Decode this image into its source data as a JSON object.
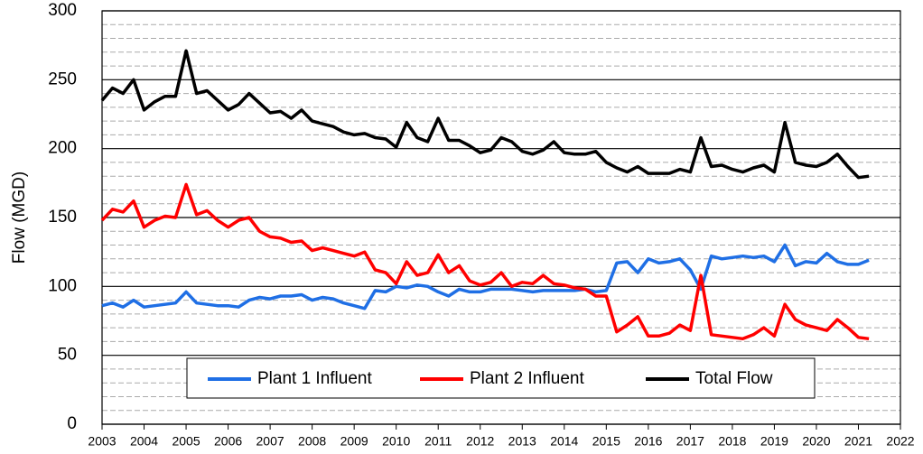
{
  "chart_data": {
    "type": "line",
    "y_label": "Flow (MGD)",
    "x": [
      2003,
      2003.25,
      2003.5,
      2003.75,
      2004,
      2004.25,
      2004.5,
      2004.75,
      2005,
      2005.25,
      2005.5,
      2005.75,
      2006,
      2006.25,
      2006.5,
      2006.75,
      2007,
      2007.25,
      2007.5,
      2007.75,
      2008,
      2008.25,
      2008.5,
      2008.75,
      2009,
      2009.25,
      2009.5,
      2009.75,
      2010,
      2010.25,
      2010.5,
      2010.75,
      2011,
      2011.25,
      2011.5,
      2011.75,
      2012,
      2012.25,
      2012.5,
      2012.75,
      2013,
      2013.25,
      2013.5,
      2013.75,
      2014,
      2014.25,
      2014.5,
      2014.75,
      2015,
      2015.25,
      2015.5,
      2015.75,
      2016,
      2016.25,
      2016.5,
      2016.75,
      2017,
      2017.25,
      2017.5,
      2017.75,
      2018,
      2018.25,
      2018.5,
      2018.75,
      2019,
      2019.25,
      2019.5,
      2019.75,
      2020,
      2020.25,
      2020.5,
      2020.75,
      2021,
      2021.25
    ],
    "series": [
      {
        "name": "Plant 1 Influent",
        "color": "#1f6fe5",
        "values": [
          86,
          88,
          85,
          90,
          85,
          86,
          87,
          88,
          96,
          88,
          87,
          86,
          86,
          85,
          90,
          92,
          91,
          93,
          93,
          94,
          90,
          92,
          91,
          88,
          86,
          84,
          97,
          96,
          100,
          99,
          101,
          100,
          96,
          93,
          98,
          96,
          96,
          98,
          98,
          98,
          97,
          96,
          97,
          97,
          97,
          97,
          98,
          96,
          97,
          117,
          118,
          110,
          120,
          117,
          118,
          120,
          112,
          98,
          122,
          120,
          121,
          122,
          121,
          122,
          118,
          130,
          115,
          118,
          117,
          124,
          118,
          116,
          116,
          119
        ]
      },
      {
        "name": "Plant 2 Influent",
        "color": "#ff0000",
        "values": [
          148,
          156,
          154,
          162,
          143,
          148,
          151,
          150,
          174,
          152,
          155,
          148,
          143,
          148,
          150,
          140,
          136,
          135,
          132,
          133,
          126,
          128,
          126,
          124,
          122,
          125,
          112,
          110,
          102,
          118,
          108,
          110,
          123,
          110,
          115,
          104,
          101,
          103,
          110,
          100,
          103,
          102,
          108,
          102,
          101,
          99,
          98,
          93,
          93,
          67,
          72,
          78,
          64,
          64,
          66,
          72,
          68,
          108,
          65,
          64,
          63,
          62,
          65,
          70,
          64,
          87,
          76,
          72,
          70,
          68,
          76,
          70,
          63,
          62
        ]
      },
      {
        "name": "Total Flow",
        "color": "#000000",
        "values": [
          235,
          244,
          240,
          250,
          228,
          234,
          238,
          238,
          271,
          240,
          242,
          235,
          228,
          232,
          240,
          233,
          226,
          227,
          222,
          228,
          220,
          218,
          216,
          212,
          210,
          211,
          208,
          207,
          201,
          219,
          208,
          205,
          222,
          206,
          206,
          202,
          197,
          199,
          208,
          205,
          198,
          196,
          199,
          205,
          197,
          196,
          196,
          198,
          190,
          186,
          183,
          187,
          182,
          182,
          182,
          185,
          183,
          208,
          187,
          188,
          185,
          183,
          186,
          188,
          183,
          219,
          190,
          188,
          187,
          190,
          196,
          187,
          179,
          180
        ]
      }
    ],
    "xlim": [
      2003,
      2022
    ],
    "xticks": [
      2003,
      2004,
      2005,
      2006,
      2007,
      2008,
      2009,
      2010,
      2011,
      2012,
      2013,
      2014,
      2015,
      2016,
      2017,
      2018,
      2019,
      2020,
      2021,
      2022
    ],
    "ylim": [
      0,
      300
    ],
    "yticks": [
      0,
      50,
      100,
      150,
      200,
      250,
      300
    ],
    "minor_yticks": [
      10,
      20,
      30,
      40,
      60,
      70,
      80,
      90,
      110,
      120,
      130,
      140,
      160,
      170,
      180,
      190,
      210,
      220,
      230,
      240,
      260,
      270,
      280,
      290
    ],
    "grid": true,
    "legend": "bottom"
  }
}
